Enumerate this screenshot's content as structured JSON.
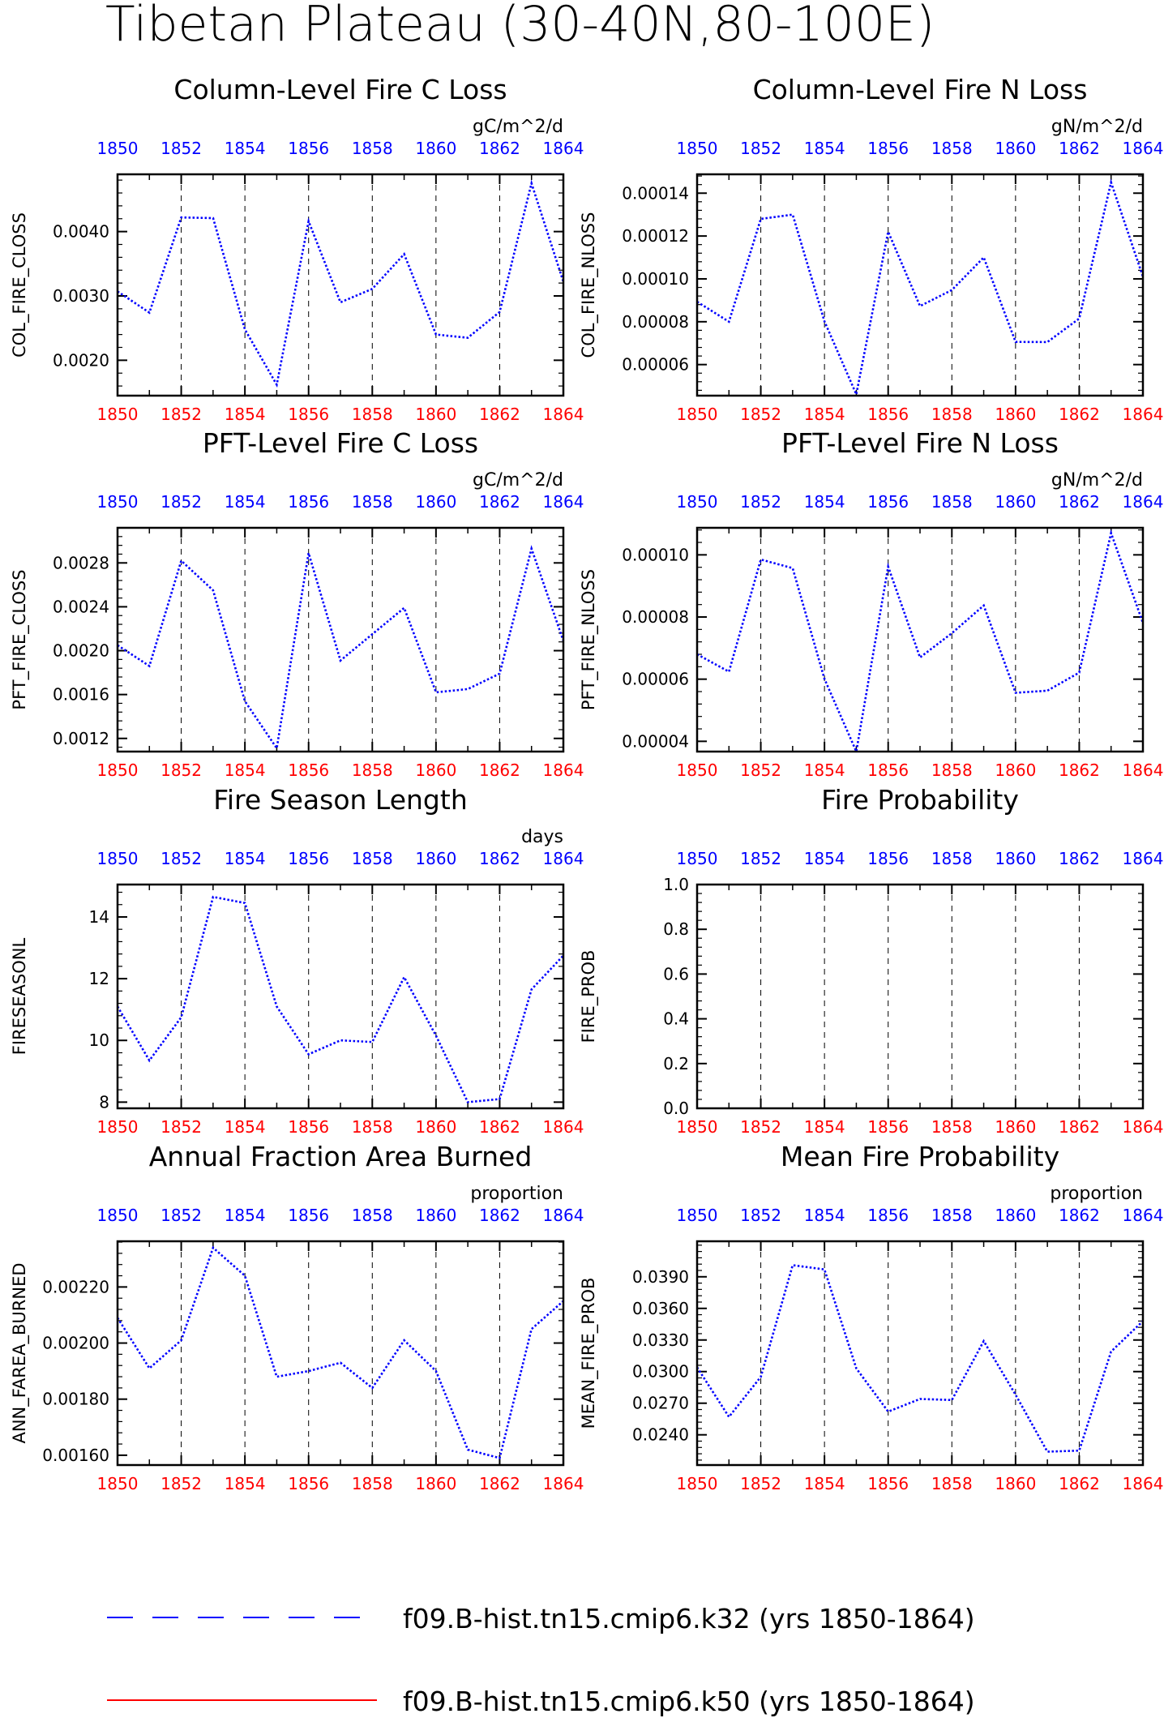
{
  "title": "Tibetan Plateau (30-40N,80-100E)",
  "colors": {
    "series_line": "#0000ff",
    "top_ticks": "#0000ff",
    "bottom_ticks": "#ff0000",
    "legend_k50": "#ff0000"
  },
  "legend": [
    {
      "label": "f09.B-hist.tn15.cmip6.k32 (yrs 1850-1864)",
      "color": "#0000ff",
      "style": "dashed"
    },
    {
      "label": "f09.B-hist.tn15.cmip6.k50 (yrs 1850-1864)",
      "color": "#ff0000",
      "style": "solid"
    }
  ],
  "chart_data": [
    {
      "type": "line",
      "title": "Column-Level Fire C Loss",
      "units": "gC/m^2/d",
      "ylabel": "COL_FIRE_CLOSS",
      "xlim": [
        1850,
        1864
      ],
      "ylim": [
        0.00145,
        0.00489
      ],
      "xticks": [
        "1850",
        "1852",
        "1854",
        "1856",
        "1858",
        "1860",
        "1862",
        "1864"
      ],
      "yticks": [
        0.002,
        0.003,
        0.004
      ],
      "yticklabels": [
        "0.0020",
        "0.0030",
        "0.0040"
      ],
      "x": [
        1850,
        1851,
        1852,
        1853,
        1854,
        1855,
        1856,
        1857,
        1858,
        1859,
        1860,
        1861,
        1862,
        1863,
        1864
      ],
      "series": [
        {
          "values": [
            0.00307,
            0.00274,
            0.00422,
            0.00421,
            0.00248,
            0.00162,
            0.00416,
            0.0029,
            0.00311,
            0.00365,
            0.0024,
            0.00235,
            0.00275,
            0.00475,
            0.00322
          ]
        }
      ]
    },
    {
      "type": "line",
      "title": "Column-Level Fire N Loss",
      "units": "gN/m^2/d",
      "ylabel": "COL_FIRE_NLOSS",
      "xlim": [
        1850,
        1864
      ],
      "ylim": [
        4.55e-05,
        0.0001488
      ],
      "xticks": [
        "1850",
        "1852",
        "1854",
        "1856",
        "1858",
        "1860",
        "1862",
        "1864"
      ],
      "yticks": [
        6e-05,
        8e-05,
        0.0001,
        0.00012,
        0.00014
      ],
      "yticklabels": [
        "0.00006",
        "0.00008",
        "0.00010",
        "0.00012",
        "0.00014"
      ],
      "x": [
        1850,
        1851,
        1852,
        1853,
        1854,
        1855,
        1856,
        1857,
        1858,
        1859,
        1860,
        1861,
        1862,
        1863,
        1864
      ],
      "series": [
        {
          "values": [
            8.93e-05,
            8e-05,
            0.000128,
            0.00013,
            8.02e-05,
            4.61e-05,
            0.000122,
            8.73e-05,
            9.48e-05,
            0.00011,
            7.06e-05,
            7.05e-05,
            8.15e-05,
            0.000145,
            0.000101
          ]
        }
      ]
    },
    {
      "type": "line",
      "title": "PFT-Level Fire C Loss",
      "units": "gC/m^2/d",
      "ylabel": "PFT_FIRE_CLOSS",
      "xlim": [
        1850,
        1864
      ],
      "ylim": [
        0.00108,
        0.00312
      ],
      "xticks": [
        "1850",
        "1852",
        "1854",
        "1856",
        "1858",
        "1860",
        "1862",
        "1864"
      ],
      "yticks": [
        0.0012,
        0.0016,
        0.002,
        0.0024,
        0.0028
      ],
      "yticklabels": [
        "0.0012",
        "0.0016",
        "0.0020",
        "0.0024",
        "0.0028"
      ],
      "x": [
        1850,
        1851,
        1852,
        1853,
        1854,
        1855,
        1856,
        1857,
        1858,
        1859,
        1860,
        1861,
        1862,
        1863,
        1864
      ],
      "series": [
        {
          "values": [
            0.00205,
            0.00186,
            0.00282,
            0.00255,
            0.00154,
            0.00111,
            0.00289,
            0.00191,
            0.00215,
            0.00239,
            0.00162,
            0.00165,
            0.00179,
            0.00293,
            0.00209
          ]
        }
      ]
    },
    {
      "type": "line",
      "title": "PFT-Level Fire N Loss",
      "units": "gN/m^2/d",
      "ylabel": "PFT_FIRE_NLOSS",
      "xlim": [
        1850,
        1864
      ],
      "ylim": [
        3.67e-05,
        0.0001087
      ],
      "xticks": [
        "1850",
        "1852",
        "1854",
        "1856",
        "1858",
        "1860",
        "1862",
        "1864"
      ],
      "yticks": [
        4e-05,
        6e-05,
        8e-05,
        0.0001
      ],
      "yticklabels": [
        "0.00004",
        "0.00006",
        "0.00008",
        "0.00010"
      ],
      "x": [
        1850,
        1851,
        1852,
        1853,
        1854,
        1855,
        1856,
        1857,
        1858,
        1859,
        1860,
        1861,
        1862,
        1863,
        1864
      ],
      "series": [
        {
          "values": [
            6.8e-05,
            6.24e-05,
            9.85e-05,
            9.57e-05,
            6.01e-05,
            3.67e-05,
            9.62e-05,
            6.7e-05,
            7.48e-05,
            8.37e-05,
            5.56e-05,
            5.63e-05,
            6.21e-05,
            0.000107,
            7.81e-05
          ]
        }
      ]
    },
    {
      "type": "line",
      "title": "Fire Season Length",
      "units": "days",
      "ylabel": "FIRESEASONL",
      "xlim": [
        1850,
        1864
      ],
      "ylim": [
        7.8,
        15.05
      ],
      "xticks": [
        "1850",
        "1852",
        "1854",
        "1856",
        "1858",
        "1860",
        "1862",
        "1864"
      ],
      "yticks": [
        8,
        10,
        12,
        14
      ],
      "yticklabels": [
        "8",
        "10",
        "12",
        "14"
      ],
      "x": [
        1850,
        1851,
        1852,
        1853,
        1854,
        1855,
        1856,
        1857,
        1858,
        1859,
        1860,
        1861,
        1862,
        1863,
        1864
      ],
      "series": [
        {
          "values": [
            11.1,
            9.35,
            10.75,
            14.65,
            14.45,
            11.1,
            9.55,
            10.0,
            9.95,
            12.05,
            10.15,
            8.0,
            8.1,
            11.65,
            12.75
          ]
        }
      ]
    },
    {
      "type": "line",
      "title": "Fire Probability",
      "units": "",
      "ylabel": "FIRE_PROB",
      "xlim": [
        1850,
        1864
      ],
      "ylim": [
        0,
        1
      ],
      "xticks": [
        "1850",
        "1852",
        "1854",
        "1856",
        "1858",
        "1860",
        "1862",
        "1864"
      ],
      "yticks": [
        0,
        0.2,
        0.4,
        0.6,
        0.8,
        1.0
      ],
      "yticklabels": [
        "0.0",
        "0.2",
        "0.4",
        "0.6",
        "0.8",
        "1.0"
      ],
      "x": [],
      "series": []
    },
    {
      "type": "line",
      "title": "Annual Fraction Area Burned",
      "units": "proportion",
      "ylabel": "ANN_FAREA_BURNED",
      "xlim": [
        1850,
        1864
      ],
      "ylim": [
        0.001565,
        0.002363
      ],
      "xticks": [
        "1850",
        "1852",
        "1854",
        "1856",
        "1858",
        "1860",
        "1862",
        "1864"
      ],
      "yticks": [
        0.0016,
        0.0018,
        0.002,
        0.0022
      ],
      "yticklabels": [
        "0.00160",
        "0.00180",
        "0.00200",
        "0.00220"
      ],
      "x": [
        1850,
        1851,
        1852,
        1853,
        1854,
        1855,
        1856,
        1857,
        1858,
        1859,
        1860,
        1861,
        1862,
        1863,
        1864
      ],
      "series": [
        {
          "values": [
            0.00209,
            0.00191,
            0.00201,
            0.00234,
            0.00224,
            0.00188,
            0.0019,
            0.00193,
            0.00184,
            0.00201,
            0.0019,
            0.00162,
            0.00159,
            0.00205,
            0.00215
          ]
        }
      ]
    },
    {
      "type": "line",
      "title": "Mean Fire Probability",
      "units": "proportion",
      "ylabel": "MEAN_FIRE_PROB",
      "xlim": [
        1850,
        1864
      ],
      "ylim": [
        0.02113,
        0.04237
      ],
      "xticks": [
        "1850",
        "1852",
        "1854",
        "1856",
        "1858",
        "1860",
        "1862",
        "1864"
      ],
      "yticks": [
        0.024,
        0.027,
        0.03,
        0.033,
        0.036,
        0.039
      ],
      "yticklabels": [
        "0.0240",
        "0.0270",
        "0.0300",
        "0.0330",
        "0.0360",
        "0.0390"
      ],
      "x": [
        1850,
        1851,
        1852,
        1853,
        1854,
        1855,
        1856,
        1857,
        1858,
        1859,
        1860,
        1861,
        1862,
        1863,
        1864
      ],
      "series": [
        {
          "values": [
            0.0304,
            0.0257,
            0.0295,
            0.0401,
            0.0397,
            0.0303,
            0.0262,
            0.0274,
            0.0273,
            0.0329,
            0.0278,
            0.0224,
            0.0225,
            0.0319,
            0.0348
          ]
        }
      ]
    }
  ]
}
